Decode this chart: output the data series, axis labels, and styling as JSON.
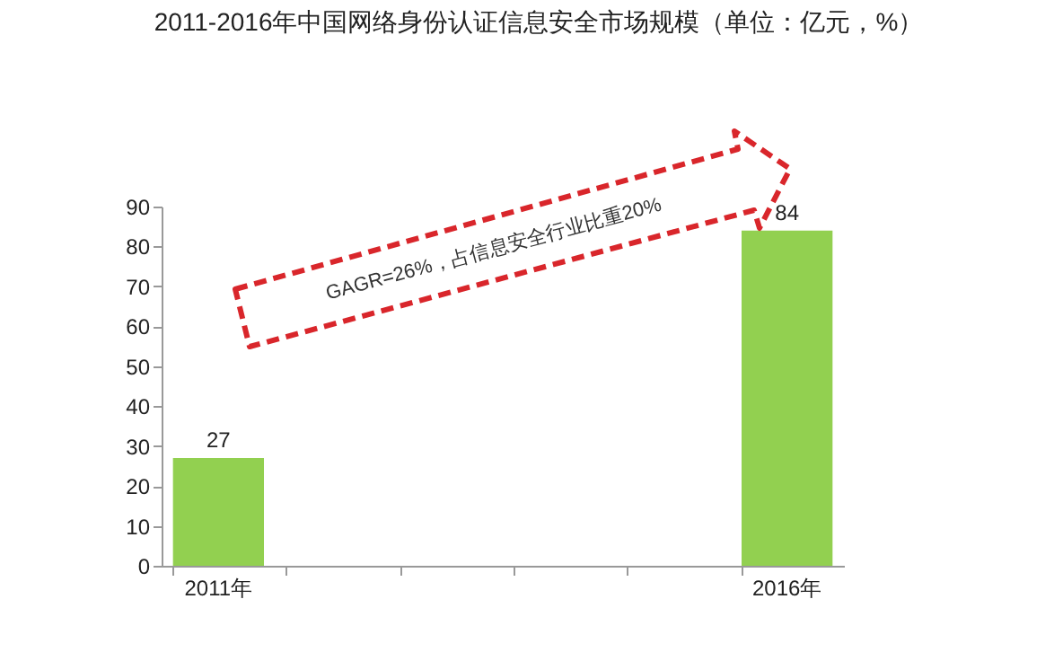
{
  "chart_data": {
    "type": "bar",
    "title": "2011-2016年中国网络身份认证信息安全市场规模（单位：亿元，%）",
    "categories": [
      "2011年",
      null,
      null,
      null,
      null,
      "2016年"
    ],
    "values": [
      27,
      null,
      null,
      null,
      null,
      84
    ],
    "color": "#92d050",
    "ylim": [
      0,
      90
    ],
    "yticks": [
      0,
      10,
      20,
      30,
      40,
      50,
      60,
      70,
      80,
      90
    ],
    "grid": false,
    "data_labels": true,
    "annotations": [
      "GAGR=26%，占信息安全行业比重20%"
    ]
  }
}
